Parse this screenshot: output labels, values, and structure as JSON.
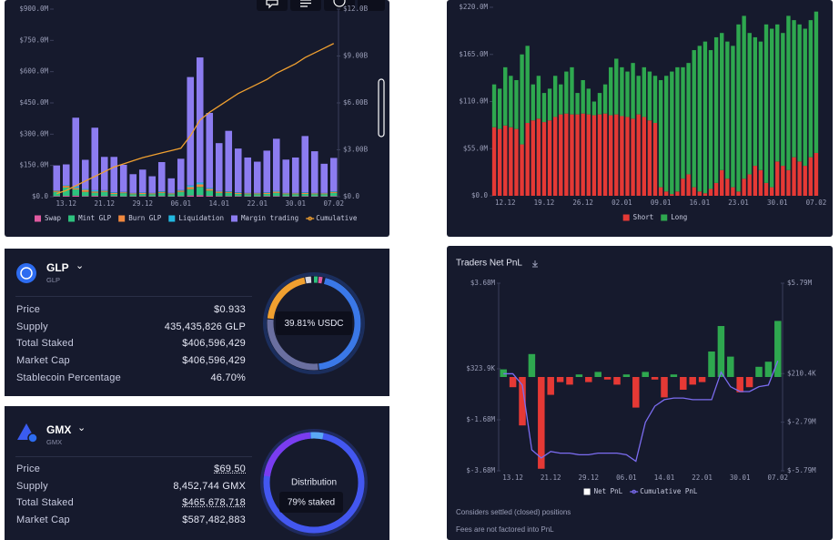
{
  "chart_data": [
    {
      "type": "bar",
      "stacked": true,
      "grid": false,
      "categories": [
        null,
        "13.12",
        null,
        null,
        null,
        "21.12",
        null,
        null,
        null,
        "29.12",
        null,
        null,
        null,
        "06.01",
        null,
        null,
        null,
        "14.01",
        null,
        null,
        null,
        "22.01",
        null,
        null,
        null,
        "30.01",
        null,
        null,
        null,
        "07.02"
      ],
      "ylim": [
        0,
        900
      ],
      "yticks": [
        {
          "value": 0,
          "label": "$0.0"
        },
        {
          "value": 150,
          "label": "$150.0M"
        },
        {
          "value": 300,
          "label": "$300.0M"
        },
        {
          "value": 450,
          "label": "$450.0M"
        },
        {
          "value": 600,
          "label": "$600.0M"
        },
        {
          "value": 750,
          "label": "$750.0M"
        },
        {
          "value": 900,
          "label": "$900.0M"
        }
      ],
      "y2lim": [
        0,
        12
      ],
      "y2ticks": [
        {
          "value": 0,
          "label": "$0.0"
        },
        {
          "value": 3,
          "label": "$3.00B"
        },
        {
          "value": 6,
          "label": "$6.00B"
        },
        {
          "value": 9,
          "label": "$9.00B"
        },
        {
          "value": 12,
          "label": "$12.0B"
        }
      ],
      "series": [
        {
          "name": "Swap",
          "color": "#e05aa0",
          "values": [
            3,
            4,
            5,
            3,
            4,
            3,
            3,
            2,
            2,
            3,
            2,
            3,
            2,
            3,
            6,
            7,
            4,
            3,
            3,
            3,
            2,
            2,
            3,
            3,
            2,
            2,
            3,
            2,
            2,
            3
          ]
        },
        {
          "name": "Mint GLP",
          "color": "#2ec27e",
          "values": [
            20,
            40,
            30,
            20,
            15,
            20,
            10,
            15,
            10,
            10,
            10,
            15,
            10,
            20,
            30,
            40,
            25,
            15,
            15,
            10,
            10,
            10,
            10,
            15,
            10,
            10,
            10,
            10,
            10,
            15
          ]
        },
        {
          "name": "Burn GLP",
          "color": "#f0883e",
          "values": [
            5,
            8,
            6,
            10,
            6,
            5,
            5,
            4,
            4,
            5,
            4,
            5,
            4,
            6,
            10,
            12,
            8,
            6,
            5,
            5,
            4,
            4,
            5,
            6,
            4,
            4,
            5,
            4,
            4,
            5
          ]
        },
        {
          "name": "Liquidation",
          "color": "#22b8e0",
          "values": [
            2,
            3,
            8,
            4,
            6,
            3,
            3,
            2,
            2,
            2,
            2,
            3,
            2,
            3,
            8,
            9,
            5,
            3,
            3,
            3,
            2,
            2,
            3,
            4,
            2,
            2,
            3,
            2,
            2,
            3
          ]
        },
        {
          "name": "Margin trading",
          "color": "#8c7cf0",
          "values": [
            120,
            100,
            330,
            140,
            300,
            160,
            170,
            130,
            90,
            110,
            80,
            140,
            70,
            150,
            520,
            600,
            360,
            230,
            290,
            210,
            170,
            150,
            200,
            250,
            160,
            170,
            270,
            200,
            140,
            160
          ]
        },
        {
          "name": "Cumulative",
          "type": "line",
          "axis": "y2",
          "color": "#f0a030",
          "values": [
            0.2,
            0.4,
            0.7,
            1.0,
            1.3,
            1.6,
            1.9,
            2.1,
            2.3,
            2.5,
            2.65,
            2.8,
            2.95,
            3.1,
            3.9,
            4.9,
            5.4,
            5.8,
            6.2,
            6.6,
            6.9,
            7.2,
            7.5,
            7.9,
            8.2,
            8.5,
            8.9,
            9.2,
            9.5,
            9.8
          ]
        }
      ]
    },
    {
      "type": "bar",
      "stacked": true,
      "grid": false,
      "categories": [
        null,
        null,
        "12.12",
        null,
        null,
        null,
        null,
        null,
        null,
        "19.12",
        null,
        null,
        null,
        null,
        null,
        null,
        "26.12",
        null,
        null,
        null,
        null,
        null,
        null,
        "02.01",
        null,
        null,
        null,
        null,
        null,
        null,
        "09.01",
        null,
        null,
        null,
        null,
        null,
        null,
        "16.01",
        null,
        null,
        null,
        null,
        null,
        null,
        "23.01",
        null,
        null,
        null,
        null,
        null,
        null,
        "30.01",
        null,
        null,
        null,
        null,
        null,
        null,
        "07.02"
      ],
      "ylim": [
        0,
        220
      ],
      "yticks": [
        {
          "value": 0,
          "label": "$0.0"
        },
        {
          "value": 55,
          "label": "$55.0M"
        },
        {
          "value": 110,
          "label": "$110.0M"
        },
        {
          "value": 165,
          "label": "$165.0M"
        },
        {
          "value": 220,
          "label": "$220.0M"
        }
      ],
      "series": [
        {
          "name": "Short",
          "color": "#e53935",
          "values": [
            80,
            78,
            82,
            80,
            78,
            60,
            85,
            88,
            90,
            86,
            88,
            92,
            95,
            96,
            95,
            95,
            96,
            95,
            94,
            95,
            96,
            94,
            95,
            93,
            92,
            90,
            95,
            92,
            88,
            85,
            10,
            5,
            2,
            5,
            20,
            25,
            10,
            5,
            3,
            8,
            15,
            30,
            20,
            10,
            5,
            20,
            25,
            35,
            30,
            15,
            10,
            40,
            35,
            30,
            45,
            40,
            35,
            45,
            50
          ]
        },
        {
          "name": "Long",
          "color": "#2ea84f",
          "values": [
            50,
            47,
            68,
            60,
            57,
            105,
            90,
            42,
            50,
            34,
            37,
            48,
            35,
            49,
            55,
            25,
            39,
            30,
            16,
            25,
            34,
            56,
            65,
            57,
            53,
            65,
            45,
            58,
            57,
            55,
            125,
            135,
            143,
            145,
            130,
            130,
            160,
            170,
            177,
            162,
            170,
            160,
            160,
            165,
            195,
            190,
            165,
            150,
            150,
            185,
            185,
            160,
            155,
            180,
            160,
            160,
            160,
            160,
            165
          ]
        }
      ]
    },
    {
      "type": "bar",
      "stacked": false,
      "grid": false,
      "title": "Traders Net PnL",
      "notes": [
        "Considers settled (closed) positions",
        "Fees are not factored into PnL"
      ],
      "categories": [
        null,
        "13.12",
        null,
        null,
        null,
        "21.12",
        null,
        null,
        null,
        "29.12",
        null,
        null,
        null,
        "06.01",
        null,
        null,
        null,
        "14.01",
        null,
        null,
        null,
        "22.01",
        null,
        null,
        null,
        "30.01",
        null,
        null,
        null,
        "07.02"
      ],
      "ylim": [
        -3.68,
        3.68
      ],
      "yticks": [
        {
          "value": -3.68,
          "label": "$-3.68M"
        },
        {
          "value": -1.68,
          "label": "$-1.68M"
        },
        {
          "value": 0.3239,
          "label": "$323.9K"
        },
        {
          "value": 3.68,
          "label": "$3.68M"
        }
      ],
      "y2lim": [
        -5.79,
        5.79
      ],
      "y2ticks": [
        {
          "value": -5.79,
          "label": "$-5.79M"
        },
        {
          "value": -2.79,
          "label": "$-2.79M"
        },
        {
          "value": 0.2104,
          "label": "$210.4K"
        },
        {
          "value": 5.79,
          "label": "$5.79M"
        }
      ],
      "series": [
        {
          "name": "Net PnL",
          "color": "#ffffff",
          "up_color": "#2ea84f",
          "down_color": "#e53935",
          "values": [
            0.3,
            -0.4,
            -1.9,
            0.9,
            -3.6,
            -0.7,
            -0.2,
            -0.3,
            0.1,
            -0.2,
            0.2,
            -0.1,
            -0.3,
            0.1,
            -1.2,
            0.2,
            -0.1,
            -0.8,
            0.1,
            -0.5,
            -0.3,
            -0.2,
            1.0,
            2.0,
            0.8,
            -0.6,
            -0.4,
            0.4,
            0.6,
            2.2
          ]
        },
        {
          "name": "Cumulative PnL",
          "type": "line",
          "axis": "y2",
          "color": "#7b6cf0",
          "values": [
            0.2,
            0.2,
            -0.5,
            -4.5,
            -5.0,
            -4.6,
            -4.7,
            -4.7,
            -4.8,
            -4.8,
            -4.7,
            -4.7,
            -4.7,
            -4.8,
            -5.2,
            -2.8,
            -1.8,
            -1.4,
            -1.3,
            -1.3,
            -1.4,
            -1.4,
            -1.4,
            0.3,
            -0.6,
            -0.9,
            -0.9,
            -0.6,
            -0.5,
            1.0
          ]
        }
      ]
    }
  ],
  "cards": [
    {
      "name": "GLP",
      "symbol": "GLP",
      "donut_label": "39.81% USDC",
      "rows": [
        [
          "Price",
          "$0.933"
        ],
        [
          "Supply",
          "435,435,826 GLP"
        ],
        [
          "Total Staked",
          "$406,596,429"
        ],
        [
          "Market Cap",
          "$406,596,429"
        ],
        [
          "Stablecoin Percentage",
          "46.70%"
        ]
      ]
    },
    {
      "name": "GMX",
      "symbol": "GMX",
      "donut_title": "Distribution",
      "donut_label": "79% staked",
      "rows": [
        [
          "Price",
          "$69.50"
        ],
        [
          "Supply",
          "8,452,744 GMX"
        ],
        [
          "Total Staked",
          "$465,678,718"
        ],
        [
          "Market Cap",
          "$587,482,883"
        ]
      ]
    }
  ]
}
